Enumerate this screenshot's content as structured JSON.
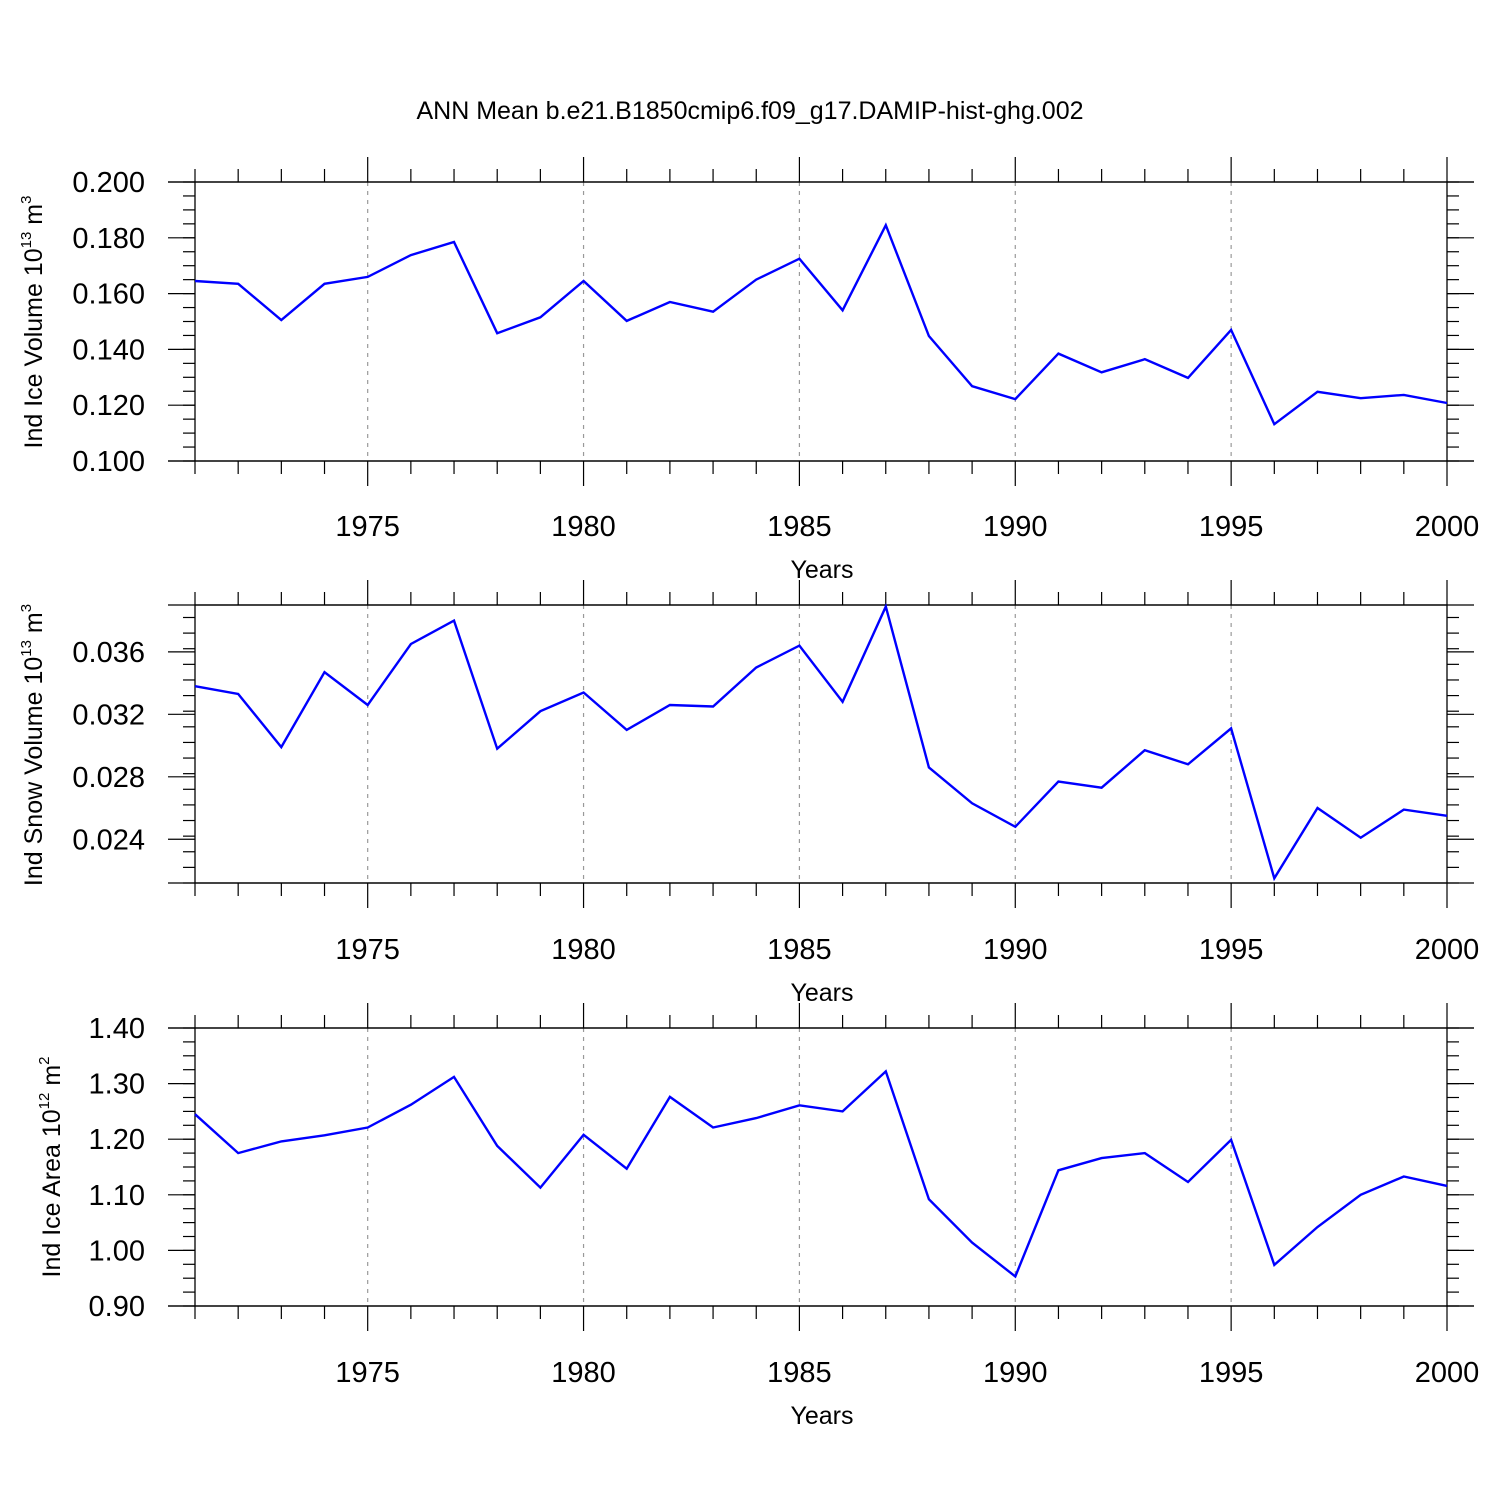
{
  "title": "ANN Mean b.e21.B1850cmip6.f09_g17.DAMIP-hist-ghg.002",
  "line_color": "#0000ff",
  "chart_data": [
    {
      "type": "line",
      "xlabel": "Years",
      "ylabel": {
        "prefix": "Ind Ice Volume 10",
        "exp": "13",
        "unit": " m",
        "unit_exp": "3"
      },
      "xlim": [
        1971,
        2000
      ],
      "ylim": [
        0.1,
        0.2
      ],
      "xticks": [
        "1975",
        "1980",
        "1985",
        "1990",
        "1995",
        "2000"
      ],
      "yticks": [
        "0.100",
        "0.120",
        "0.140",
        "0.160",
        "0.180",
        "0.200"
      ],
      "grid": "x dashed at major ticks",
      "x": [
        1971,
        1972,
        1973,
        1974,
        1975,
        1976,
        1977,
        1978,
        1979,
        1980,
        1981,
        1982,
        1983,
        1984,
        1985,
        1986,
        1987,
        1988,
        1989,
        1990,
        1991,
        1992,
        1993,
        1994,
        1995,
        1996,
        1997,
        1998,
        1999,
        2000
      ],
      "values": [
        0.1645,
        0.1635,
        0.1505,
        0.1635,
        0.166,
        0.1738,
        0.1785,
        0.1458,
        0.1515,
        0.1645,
        0.1502,
        0.157,
        0.1535,
        0.165,
        0.1725,
        0.154,
        0.1845,
        0.1448,
        0.1268,
        0.1222,
        0.1385,
        0.1318,
        0.1365,
        0.1298,
        0.147,
        0.1132,
        0.1248,
        0.1225,
        0.1237,
        0.1208
      ]
    },
    {
      "type": "line",
      "xlabel": "Years",
      "ylabel": {
        "prefix": "Ind Snow Volume 10",
        "exp": "13",
        "unit": " m",
        "unit_exp": "3"
      },
      "xlim": [
        1971,
        2000
      ],
      "ylim": [
        0.0212,
        0.039
      ],
      "xticks": [
        "1975",
        "1980",
        "1985",
        "1990",
        "1995",
        "2000"
      ],
      "yticks": [
        "0.024",
        "0.028",
        "0.032",
        "0.036"
      ],
      "grid": "x dashed at major ticks",
      "x": [
        1971,
        1972,
        1973,
        1974,
        1975,
        1976,
        1977,
        1978,
        1979,
        1980,
        1981,
        1982,
        1983,
        1984,
        1985,
        1986,
        1987,
        1988,
        1989,
        1990,
        1991,
        1992,
        1993,
        1994,
        1995,
        1996,
        1997,
        1998,
        1999,
        2000
      ],
      "values": [
        0.0338,
        0.0333,
        0.0299,
        0.0347,
        0.0326,
        0.0365,
        0.038,
        0.0298,
        0.0322,
        0.0334,
        0.031,
        0.0326,
        0.0325,
        0.035,
        0.0364,
        0.0328,
        0.0389,
        0.0286,
        0.0263,
        0.0248,
        0.0277,
        0.0273,
        0.0297,
        0.0288,
        0.0311,
        0.0215,
        0.026,
        0.0241,
        0.0259,
        0.0255
      ]
    },
    {
      "type": "line",
      "xlabel": "Years",
      "ylabel": {
        "prefix": "Ind Ice Area 10",
        "exp": "12",
        "unit": " m",
        "unit_exp": "2"
      },
      "xlim": [
        1971,
        2000
      ],
      "ylim": [
        0.9,
        1.4
      ],
      "xticks": [
        "1975",
        "1980",
        "1985",
        "1990",
        "1995",
        "2000"
      ],
      "yticks": [
        "0.90",
        "1.00",
        "1.10",
        "1.20",
        "1.30",
        "1.40"
      ],
      "grid": "x dashed at major ticks",
      "x": [
        1971,
        1972,
        1973,
        1974,
        1975,
        1976,
        1977,
        1978,
        1979,
        1980,
        1981,
        1982,
        1983,
        1984,
        1985,
        1986,
        1987,
        1988,
        1989,
        1990,
        1991,
        1992,
        1993,
        1994,
        1995,
        1996,
        1997,
        1998,
        1999,
        2000
      ],
      "values": [
        1.245,
        1.175,
        1.196,
        1.207,
        1.221,
        1.262,
        1.312,
        1.188,
        1.113,
        1.208,
        1.147,
        1.276,
        1.221,
        1.238,
        1.261,
        1.25,
        1.322,
        1.092,
        1.014,
        0.953,
        1.144,
        1.166,
        1.175,
        1.123,
        1.199,
        0.974,
        1.042,
        1.1,
        1.133,
        1.116
      ]
    }
  ]
}
